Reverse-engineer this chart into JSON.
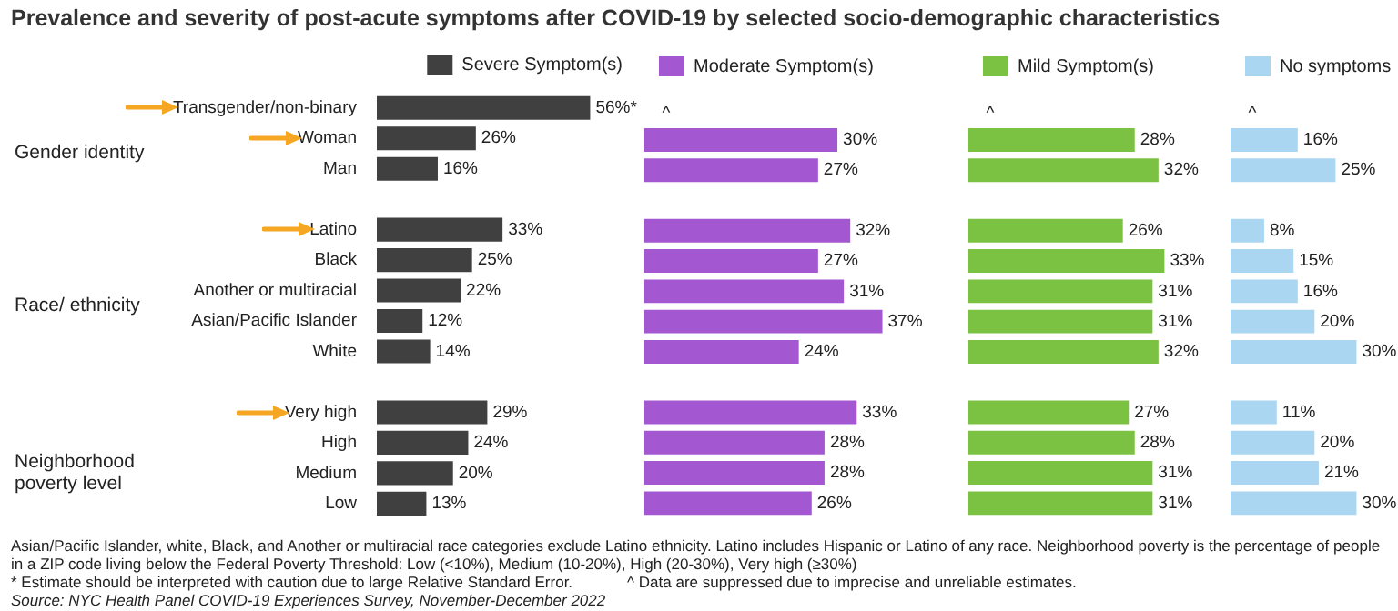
{
  "chart_data": [
    {
      "type": "bar",
      "orientation": "horizontal",
      "title": "Prevalence and severity of post-acute symptoms after COVID-19 by selected socio-demographic characteristics",
      "categories": [
        "Transgender/non-binary",
        "Woman",
        "Man",
        null,
        "Latino",
        "Black",
        "Another or multiracial",
        "Asian/Pacific Islander",
        "White",
        null,
        "Very high",
        "High",
        "Medium",
        "Low"
      ],
      "series": [
        {
          "name": "Severe Symptom(s)",
          "color": "#404040",
          "values": [
            56,
            26,
            16,
            null,
            33,
            25,
            22,
            12,
            14,
            null,
            29,
            24,
            20,
            13
          ],
          "value_labels": [
            "56%*",
            "26%",
            "16%",
            null,
            "33%",
            "25%",
            "22%",
            "12%",
            "14%",
            null,
            "29%",
            "24%",
            "20%",
            "13%"
          ]
        }
      ],
      "legend": "top",
      "tick_labels": "y",
      "annotations": [
        "Gender identity",
        "Race/ ethnicity",
        "Neighborhood poverty level"
      ]
    },
    {
      "type": "bar",
      "orientation": "horizontal",
      "categories": [
        null,
        null,
        null,
        null,
        null,
        null,
        null,
        null,
        null,
        null,
        null,
        null,
        null,
        null
      ],
      "series": [
        {
          "name": "Moderate Symptom(s)",
          "color": "#a358d2",
          "values": [
            null,
            30,
            27,
            null,
            32,
            27,
            31,
            37,
            24,
            null,
            33,
            28,
            28,
            26
          ],
          "value_labels": [
            "^",
            "30%",
            "27%",
            null,
            "32%",
            "27%",
            "31%",
            "37%",
            "24%",
            null,
            "33%",
            "28%",
            "28%",
            "26%"
          ]
        }
      ],
      "legend": "top",
      "tick_labels": false
    },
    {
      "type": "bar",
      "orientation": "horizontal",
      "categories": [
        null,
        null,
        null,
        null,
        null,
        null,
        null,
        null,
        null,
        null,
        null,
        null,
        null,
        null
      ],
      "series": [
        {
          "name": "Mild Symptom(s)",
          "color": "#7cc242",
          "values": [
            null,
            28,
            32,
            null,
            26,
            33,
            31,
            31,
            32,
            null,
            27,
            28,
            31,
            31
          ],
          "value_labels": [
            "^",
            "28%",
            "32%",
            null,
            "26%",
            "33%",
            "31%",
            "31%",
            "32%",
            null,
            "27%",
            "28%",
            "31%",
            "31%"
          ]
        }
      ],
      "legend": "top",
      "tick_labels": false
    },
    {
      "type": "bar",
      "orientation": "horizontal",
      "categories": [
        null,
        null,
        null,
        null,
        null,
        null,
        null,
        null,
        null,
        null,
        null,
        null,
        null,
        null
      ],
      "series": [
        {
          "name": "No symptoms",
          "color": "#aad6f2",
          "values": [
            null,
            16,
            25,
            null,
            8,
            15,
            16,
            20,
            30,
            null,
            11,
            20,
            21,
            30
          ],
          "value_labels": [
            "^",
            "16%",
            "25%",
            null,
            "8%",
            "15%",
            "16%",
            "20%",
            "30%",
            null,
            "11%",
            "20%",
            "21%",
            "30%"
          ]
        }
      ],
      "legend": "top",
      "tick_labels": false,
      "annotations": [
        "Asian/Pacific Islander, white, Black, and Another or multiracial race categories exclude Latino ethnicity. Latino includes Hispanic or Latino of any race. Neighborhood poverty is the percentage of people in a ZIP code living below the Federal Poverty Threshold: Low (<10%), Medium (10-20%), High (20-30%), Very high (≥30%)",
        "* Estimate should be interpreted with caution due to large Relative Standard Error.",
        "^ Data are suppressed due to imprecise and unreliable estimates.",
        "Source: NYC Health Panel COVID-19 Experiences Survey, November-December 2022"
      ]
    }
  ]
}
